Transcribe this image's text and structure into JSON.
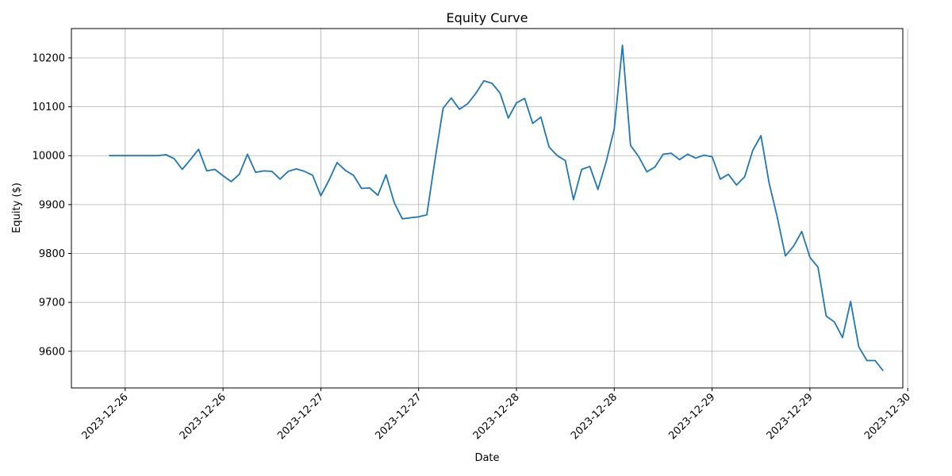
{
  "chart_data": {
    "type": "line",
    "title": "Equity Curve",
    "xlabel": "Date",
    "ylabel": "Equity ($)",
    "grid": true,
    "line_color": "#1f77b4",
    "ylim": [
      9525,
      10260
    ],
    "xlim": [
      -4.6,
      97.4
    ],
    "yticks": [
      9600,
      9700,
      9800,
      9900,
      10000,
      10100,
      10200
    ],
    "xticks": [
      {
        "pos": 2,
        "label": "2023-12-26"
      },
      {
        "pos": 14,
        "label": "2023-12-26"
      },
      {
        "pos": 26,
        "label": "2023-12-27"
      },
      {
        "pos": 38,
        "label": "2023-12-27"
      },
      {
        "pos": 50,
        "label": "2023-12-28"
      },
      {
        "pos": 62,
        "label": "2023-12-28"
      },
      {
        "pos": 74,
        "label": "2023-12-29"
      },
      {
        "pos": 86,
        "label": "2023-12-29"
      },
      {
        "pos": 98,
        "label": "2023-12-30"
      }
    ],
    "series": [
      {
        "values": [
          10000,
          10000,
          10000,
          10000,
          10000,
          10000,
          10000,
          10002,
          9994,
          9972,
          9992,
          10013,
          9969,
          9972,
          9959,
          9947,
          9962,
          10003,
          9966,
          9969,
          9968,
          9952,
          9968,
          9973,
          9968,
          9960,
          9918,
          9950,
          9986,
          9970,
          9960,
          9933,
          9934,
          9919,
          9961,
          9904,
          9871,
          9873,
          9875,
          9879,
          9990,
          10097,
          10118,
          10095,
          10106,
          10127,
          10153,
          10148,
          10128,
          10077,
          10108,
          10117,
          10066,
          10079,
          10018,
          10000,
          9990,
          9910,
          9972,
          9978,
          9931,
          9987,
          10055,
          10226,
          10021,
          9998,
          9967,
          9977,
          10003,
          10005,
          9992,
          10003,
          9995,
          10001,
          9998,
          9952,
          9962,
          9940,
          9957,
          10011,
          10041,
          9944,
          9874,
          9795,
          9815,
          9845,
          9792,
          9772,
          9672,
          9660,
          9628,
          9702,
          9609,
          9581,
          9581,
          9560
        ]
      }
    ]
  }
}
